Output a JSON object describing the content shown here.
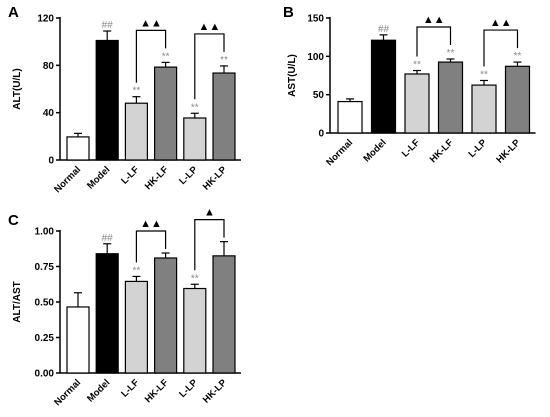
{
  "chart_data": [
    {
      "panel": "A",
      "type": "bar",
      "ylabel": "ALT(U/L)",
      "ylim": [
        0,
        120
      ],
      "yticks": [
        0,
        40,
        80,
        120
      ],
      "categories": [
        "Normal",
        "Model",
        "L-LF",
        "HK-LF",
        "L-LP",
        "HK-LP"
      ],
      "values": [
        19.5,
        101,
        48,
        78.5,
        35.5,
        73.5
      ],
      "errors": [
        3,
        8,
        5.5,
        4,
        4,
        6
      ],
      "colors": [
        "#ffffff",
        "#000000",
        "#d3d3d3",
        "#808080",
        "#d3d3d3",
        "#808080"
      ],
      "sig_labels": [
        "",
        "##",
        "**",
        "**",
        "**",
        "**"
      ],
      "comparisons": [
        {
          "from": 2,
          "to": 3,
          "label": "▲▲"
        },
        {
          "from": 4,
          "to": 5,
          "label": "▲▲"
        }
      ]
    },
    {
      "panel": "B",
      "type": "bar",
      "ylabel": "AST(U/L)",
      "ylim": [
        0,
        150
      ],
      "yticks": [
        0,
        50,
        100,
        150
      ],
      "categories": [
        "Normal",
        "Model",
        "L-LF",
        "HK-LF",
        "L-LP",
        "HK-LP"
      ],
      "values": [
        41,
        121,
        77,
        92.5,
        62.5,
        87
      ],
      "errors": [
        3.5,
        7,
        4.5,
        4,
        6,
        5.5
      ],
      "colors": [
        "#ffffff",
        "#000000",
        "#d3d3d3",
        "#808080",
        "#d3d3d3",
        "#808080"
      ],
      "sig_labels": [
        "",
        "##",
        "**",
        "**",
        "**",
        "**"
      ],
      "comparisons": [
        {
          "from": 2,
          "to": 3,
          "label": "▲▲"
        },
        {
          "from": 4,
          "to": 5,
          "label": "▲▲"
        }
      ]
    },
    {
      "panel": "C",
      "type": "bar",
      "ylabel": "ALT/AST",
      "ylim": [
        0,
        1.0
      ],
      "yticks": [
        "0.00",
        "0.25",
        "0.50",
        "0.75",
        "1.00"
      ],
      "categories": [
        "Normal",
        "Model",
        "L-LF",
        "HK-LF",
        "L-LP",
        "HK-LP"
      ],
      "values": [
        0.465,
        0.84,
        0.645,
        0.81,
        0.595,
        0.825
      ],
      "errors": [
        0.1,
        0.07,
        0.035,
        0.035,
        0.03,
        0.1
      ],
      "colors": [
        "#ffffff",
        "#000000",
        "#d3d3d3",
        "#808080",
        "#d3d3d3",
        "#808080"
      ],
      "sig_labels": [
        "",
        "##",
        "**",
        "",
        "**",
        ""
      ],
      "comparisons": [
        {
          "from": 2,
          "to": 3,
          "label": "▲▲"
        },
        {
          "from": 4,
          "to": 5,
          "label": "▲"
        }
      ]
    }
  ]
}
